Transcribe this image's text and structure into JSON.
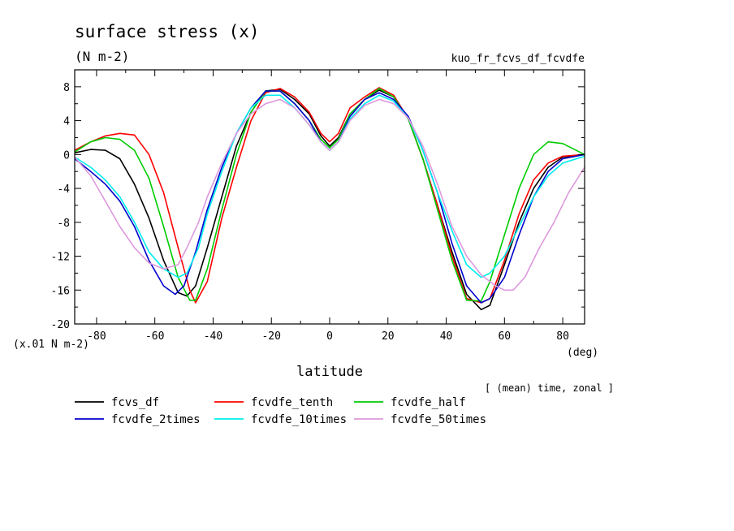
{
  "chart_data": {
    "type": "line",
    "title": "surface stress (x)",
    "units": "(N m-2)",
    "experiment": "kuo_fr_fcvs_df_fcvdfe",
    "xlabel": "latitude",
    "xunit": "(deg)",
    "yscale_label": "(x.01 N m-2)",
    "averaging_note": "[ (mean) time, zonal ]",
    "xlim": [
      -87.5,
      87.5
    ],
    "ylim": [
      -20,
      10
    ],
    "xticks": [
      -80,
      -60,
      -40,
      -20,
      0,
      20,
      40,
      60,
      80
    ],
    "xtick_labels": [
      "-80",
      "-60",
      "-40",
      "-20",
      "0",
      "20",
      "40",
      "60",
      "80"
    ],
    "yticks": [
      8,
      4,
      0,
      -4,
      -8,
      -12,
      -16,
      -20
    ],
    "ytick_labels": [
      "8",
      "4",
      "0",
      "-4",
      "-8",
      "-12",
      "-16",
      "-20"
    ],
    "series": [
      {
        "name": "fcvs_df",
        "color": "#000000",
        "x": [
          -87.5,
          -82,
          -77,
          -72,
          -67,
          -62,
          -57,
          -52,
          -49,
          -46,
          -42,
          -37,
          -32,
          -27,
          -22,
          -17,
          -12,
          -7,
          -3,
          0,
          3,
          7,
          12,
          17,
          22,
          27,
          32,
          37,
          42,
          47,
          52,
          55,
          60,
          65,
          70,
          75,
          80,
          87.5
        ],
        "y": [
          0.2,
          0.6,
          0.5,
          -0.5,
          -3.5,
          -7.5,
          -12.5,
          -16.3,
          -16.7,
          -15.5,
          -11,
          -5,
          1,
          5,
          7.5,
          7.7,
          6.5,
          4.8,
          2.2,
          1.0,
          2.0,
          4.8,
          6.5,
          7.6,
          6.8,
          4.2,
          -0.5,
          -6,
          -11.5,
          -16.5,
          -18.3,
          -17.8,
          -13,
          -8,
          -4,
          -1.5,
          -0.3,
          0.0
        ]
      },
      {
        "name": "fcvdfe_tenth",
        "color": "#ff0000",
        "x": [
          -87.5,
          -82,
          -77,
          -72,
          -67,
          -62,
          -57,
          -52,
          -48,
          -46,
          -42,
          -37,
          -32,
          -27,
          -22,
          -17,
          -12,
          -7,
          -3,
          0,
          3,
          7,
          12,
          17,
          22,
          27,
          32,
          37,
          42,
          47,
          52,
          55,
          60,
          65,
          70,
          75,
          80,
          87.5
        ],
        "y": [
          0.5,
          1.5,
          2.2,
          2.5,
          2.3,
          0,
          -4.5,
          -11,
          -16,
          -17.5,
          -15,
          -7.5,
          -1.5,
          4,
          7.3,
          7.8,
          6.8,
          5,
          2.5,
          1.5,
          2.5,
          5.5,
          6.8,
          7.9,
          7,
          4.2,
          -0.5,
          -6,
          -12,
          -17,
          -17.5,
          -17,
          -12.5,
          -7,
          -3,
          -1,
          -0.2,
          0.0
        ]
      },
      {
        "name": "fcvdfe_half",
        "color": "#00cc00",
        "x": [
          -87.5,
          -82,
          -77,
          -72,
          -67,
          -62,
          -57,
          -52,
          -48,
          -46,
          -42,
          -37,
          -32,
          -27,
          -22,
          -17,
          -12,
          -7,
          -3,
          0,
          3,
          7,
          12,
          17,
          22,
          27,
          32,
          37,
          42,
          47,
          52,
          55,
          60,
          65,
          70,
          75,
          80,
          87.5
        ],
        "y": [
          0.3,
          1.5,
          2.0,
          1.8,
          0.5,
          -2.8,
          -8.5,
          -14.5,
          -17.2,
          -17.2,
          -13.5,
          -6.5,
          0,
          5,
          7.5,
          7.5,
          6,
          4,
          1.8,
          0.8,
          1.8,
          4.8,
          6.5,
          7.8,
          6.8,
          4.2,
          -0.5,
          -6.5,
          -12.5,
          -17.2,
          -17.3,
          -15,
          -9.5,
          -4,
          0,
          1.5,
          1.3,
          0.0
        ]
      },
      {
        "name": "fcvdfe_2times",
        "color": "#0000cc",
        "x": [
          -87.5,
          -82,
          -77,
          -72,
          -67,
          -62,
          -57,
          -53,
          -50,
          -46,
          -42,
          -37,
          -32,
          -27,
          -22,
          -17,
          -12,
          -7,
          -3,
          0,
          3,
          7,
          12,
          17,
          22,
          27,
          32,
          37,
          42,
          47,
          52,
          55,
          60,
          65,
          70,
          75,
          80,
          87.5
        ],
        "y": [
          -0.5,
          -2,
          -3.5,
          -5.5,
          -8.5,
          -12.5,
          -15.5,
          -16.5,
          -15.5,
          -11.5,
          -6.5,
          -1.5,
          2.5,
          5.5,
          7.5,
          7.5,
          6,
          4,
          1.5,
          0.5,
          1.5,
          4.5,
          6.5,
          7.3,
          6.5,
          4.5,
          0.5,
          -4.5,
          -10.5,
          -15.5,
          -17.5,
          -17,
          -14.5,
          -9.5,
          -5,
          -2,
          -0.5,
          0.0
        ]
      },
      {
        "name": "fcvdfe_10times",
        "color": "#00eeee",
        "x": [
          -87.5,
          -82,
          -77,
          -72,
          -67,
          -62,
          -57,
          -52,
          -49,
          -45,
          -42,
          -37,
          -32,
          -27,
          -22,
          -17,
          -12,
          -7,
          -3,
          0,
          3,
          7,
          12,
          17,
          22,
          27,
          32,
          37,
          42,
          47,
          52,
          55,
          60,
          65,
          70,
          75,
          80,
          87.5
        ],
        "y": [
          -0.3,
          -1.5,
          -3,
          -5,
          -8,
          -11.5,
          -13.5,
          -14.5,
          -14,
          -11,
          -7,
          -2,
          2.5,
          5.5,
          7,
          7,
          5.5,
          3.5,
          1.5,
          0.5,
          1.5,
          4.2,
          6,
          7,
          6.3,
          4.3,
          0.5,
          -4.5,
          -9,
          -13,
          -14.5,
          -14,
          -12,
          -8.5,
          -5,
          -2.5,
          -1,
          -0.2
        ]
      },
      {
        "name": "fcvdfe_50times",
        "color": "#dd99dd",
        "x": [
          -87.5,
          -82,
          -77,
          -72,
          -67,
          -62,
          -57,
          -52,
          -49,
          -45,
          -42,
          -37,
          -32,
          -27,
          -22,
          -17,
          -12,
          -7,
          -3,
          0,
          3,
          7,
          12,
          17,
          22,
          27,
          32,
          37,
          42,
          47,
          52,
          57,
          60,
          63,
          67,
          72,
          77,
          82,
          87.5
        ],
        "y": [
          -0.3,
          -2.5,
          -5.5,
          -8.5,
          -11,
          -12.8,
          -13.5,
          -13,
          -11,
          -8,
          -5,
          -1,
          2.5,
          4.8,
          6,
          6.5,
          5.5,
          3.5,
          1.5,
          0.5,
          1.5,
          4,
          5.8,
          6.5,
          6,
          4.3,
          1,
          -3.5,
          -8.5,
          -12,
          -14.2,
          -15.5,
          -16,
          -16,
          -14.5,
          -11,
          -8,
          -4.5,
          -1.5
        ]
      }
    ]
  }
}
